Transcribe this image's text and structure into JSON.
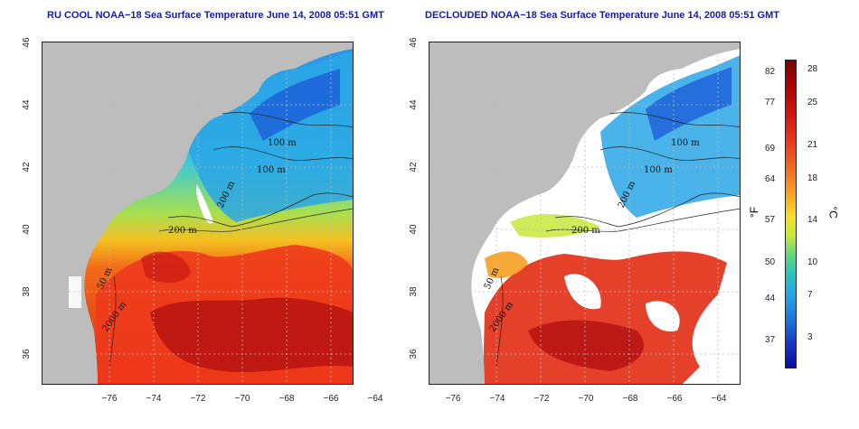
{
  "maps": {
    "left": {
      "title": "RU COOL NOAA−18 Sea Surface Temperature June 14, 2008 05:51 GMT"
    },
    "right": {
      "title": "DECLOUDED NOAA−18 Sea Surface Temperature June 14, 2008 05:51 GMT"
    }
  },
  "axes": {
    "lon_ticks": [
      "−76",
      "−74",
      "−72",
      "−70",
      "−68",
      "−66",
      "−64"
    ],
    "lat_ticks": [
      "36",
      "38",
      "40",
      "42",
      "44",
      "46"
    ]
  },
  "contour_labels": {
    "left": [
      "100 m",
      "100 m",
      "200 m",
      "200 m",
      "50 m",
      "2000 m"
    ],
    "right": [
      "100 m",
      "100 m",
      "200 m",
      "200 m",
      "50 m",
      "2000 m"
    ]
  },
  "colorbar": {
    "fahrenheit_ticks": [
      "82",
      "77",
      "69",
      "64",
      "57",
      "50",
      "44",
      "37"
    ],
    "celsius_ticks": [
      "28",
      "25",
      "21",
      "18",
      "14",
      "10",
      "7",
      "3"
    ],
    "unit_f": "°F",
    "unit_c": "°C"
  },
  "colors": {
    "land": "#bdbdbd",
    "cloud": "#ffffff",
    "title": "#1a1aa8",
    "warm": "#e23018",
    "cold": "#1c60e0"
  }
}
